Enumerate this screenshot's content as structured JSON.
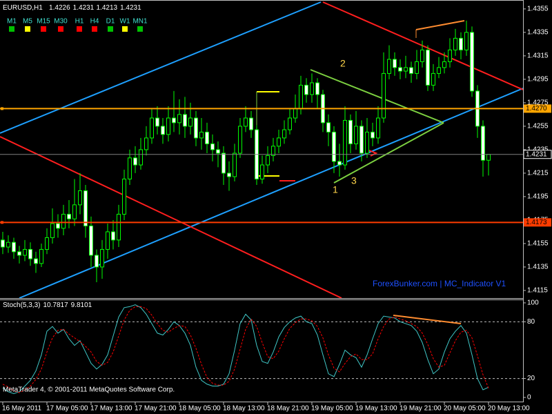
{
  "chart_data": [
    {
      "type": "candlestick",
      "title": "EURUSD,H1",
      "open": [
        1.4158,
        1.4152,
        1.4156,
        1.4148,
        1.4145,
        1.415,
        1.4142,
        1.4138,
        1.415,
        1.416,
        1.4172,
        1.4168,
        1.418,
        1.4176,
        1.4188,
        1.42,
        1.417,
        1.4145,
        1.4135,
        1.415,
        1.4165,
        1.4158,
        1.418,
        1.421,
        1.4228,
        1.4222,
        1.4235,
        1.4245,
        1.4262,
        1.4255,
        1.4248,
        1.4262,
        1.4258,
        1.4265,
        1.4255,
        1.4262,
        1.4245,
        1.425,
        1.424,
        1.4235,
        1.4232,
        1.4215,
        1.4212,
        1.4232,
        1.4255,
        1.4262,
        1.4252,
        1.421,
        1.4222,
        1.423,
        1.4238,
        1.4245,
        1.4252,
        1.4262,
        1.427,
        1.429,
        1.4282,
        1.4292,
        1.4282,
        1.4258,
        1.425,
        1.4225,
        1.4222,
        1.426,
        1.424,
        1.4255,
        1.4232,
        1.425,
        1.4245,
        1.4262,
        1.43,
        1.4312,
        1.4305,
        1.4302,
        1.4305,
        1.43,
        1.431,
        1.432,
        1.429,
        1.43,
        1.4305,
        1.431,
        1.432,
        1.433,
        1.432,
        1.4335,
        1.4285,
        1.4255,
        1.4226
      ],
      "high": [
        1.4165,
        1.4162,
        1.416,
        1.4153,
        1.4158,
        1.4156,
        1.4148,
        1.4155,
        1.4168,
        1.4185,
        1.418,
        1.4188,
        1.4192,
        1.421,
        1.4215,
        1.4205,
        1.4178,
        1.415,
        1.4158,
        1.4172,
        1.4175,
        1.4188,
        1.4218,
        1.4235,
        1.4238,
        1.4245,
        1.4255,
        1.427,
        1.4272,
        1.4262,
        1.4272,
        1.4285,
        1.4278,
        1.428,
        1.4275,
        1.4268,
        1.4262,
        1.4258,
        1.4248,
        1.4242,
        1.4238,
        1.4225,
        1.424,
        1.4262,
        1.4272,
        1.4268,
        1.4256,
        1.423,
        1.4238,
        1.4245,
        1.4252,
        1.426,
        1.427,
        1.4282,
        1.4298,
        1.4296,
        1.43,
        1.4296,
        1.4286,
        1.4265,
        1.4255,
        1.424,
        1.4272,
        1.4265,
        1.4268,
        1.426,
        1.4262,
        1.4258,
        1.4272,
        1.4318,
        1.4324,
        1.4318,
        1.4312,
        1.4315,
        1.431,
        1.432,
        1.4328,
        1.4324,
        1.4308,
        1.4314,
        1.4318,
        1.433,
        1.4338,
        1.4335,
        1.4345,
        1.434,
        1.429,
        1.426,
        1.4231
      ],
      "low": [
        1.4146,
        1.4147,
        1.4142,
        1.4138,
        1.414,
        1.4136,
        1.413,
        1.4135,
        1.4146,
        1.4155,
        1.416,
        1.4162,
        1.4168,
        1.417,
        1.418,
        1.416,
        1.4135,
        1.4122,
        1.4125,
        1.4142,
        1.415,
        1.4152,
        1.4175,
        1.4205,
        1.4215,
        1.4218,
        1.423,
        1.424,
        1.4248,
        1.424,
        1.4242,
        1.425,
        1.4248,
        1.4245,
        1.4248,
        1.4238,
        1.4235,
        1.4232,
        1.4225,
        1.422,
        1.4205,
        1.42,
        1.4208,
        1.4228,
        1.425,
        1.4245,
        1.4205,
        1.4206,
        1.4215,
        1.4225,
        1.4232,
        1.424,
        1.4248,
        1.4258,
        1.4265,
        1.4275,
        1.4275,
        1.427,
        1.425,
        1.4238,
        1.4215,
        1.4212,
        1.4218,
        1.4232,
        1.4235,
        1.4225,
        1.4228,
        1.4238,
        1.424,
        1.4258,
        1.4295,
        1.4298,
        1.4295,
        1.4296,
        1.4292,
        1.4295,
        1.4305,
        1.4285,
        1.4285,
        1.4296,
        1.43,
        1.4305,
        1.4315,
        1.4312,
        1.4315,
        1.428,
        1.4245,
        1.4212,
        1.4213
      ],
      "close": [
        1.4152,
        1.4156,
        1.4148,
        1.4145,
        1.415,
        1.4142,
        1.4138,
        1.415,
        1.416,
        1.4172,
        1.4168,
        1.418,
        1.4176,
        1.4188,
        1.42,
        1.417,
        1.4145,
        1.4135,
        1.415,
        1.4165,
        1.4158,
        1.418,
        1.421,
        1.4228,
        1.4222,
        1.4235,
        1.4245,
        1.4262,
        1.4255,
        1.4248,
        1.4262,
        1.4258,
        1.4265,
        1.4255,
        1.4262,
        1.4245,
        1.425,
        1.424,
        1.4235,
        1.4232,
        1.4215,
        1.4212,
        1.4232,
        1.4255,
        1.4262,
        1.4252,
        1.421,
        1.4222,
        1.423,
        1.4238,
        1.4245,
        1.4252,
        1.4262,
        1.427,
        1.429,
        1.4282,
        1.4292,
        1.4282,
        1.4258,
        1.425,
        1.4225,
        1.4222,
        1.426,
        1.424,
        1.4255,
        1.4232,
        1.425,
        1.4245,
        1.4262,
        1.43,
        1.4312,
        1.4305,
        1.4302,
        1.4305,
        1.43,
        1.431,
        1.432,
        1.429,
        1.43,
        1.4305,
        1.431,
        1.432,
        1.433,
        1.432,
        1.4335,
        1.4285,
        1.4255,
        1.4226,
        1.4231
      ],
      "colors": {
        "bull": "#000000",
        "bear": "#ffffff",
        "wick": "#00ff00"
      },
      "ylim": [
        1.41085,
        1.43626
      ],
      "yticks": [
        1.4355,
        1.4335,
        1.4315,
        1.4295,
        1.4275,
        1.4255,
        1.4235,
        1.4215,
        1.4195,
        1.4175,
        1.4155,
        1.4135,
        1.4115
      ],
      "current_price_color": "#808080",
      "levels": [
        {
          "value": 1.427,
          "label": "1.4270",
          "color": "#ffa500"
        },
        {
          "value": 1.4173,
          "color": "#ff3c00"
        }
      ],
      "timeframes": [
        {
          "label": "M1",
          "color": "#00c000"
        },
        {
          "label": "M5",
          "color": "#ffff00"
        },
        {
          "label": "M15",
          "color": "#ff0000"
        },
        {
          "label": "M30",
          "color": "#ff0000"
        },
        {
          "label": "H1",
          "color": "#ff0000"
        },
        {
          "label": "H4",
          "color": "#ff0000"
        },
        {
          "label": "D1",
          "color": "#00c000"
        },
        {
          "label": "W1",
          "color": "#ffff00"
        },
        {
          "label": "MN1",
          "color": "#00c000"
        }
      ],
      "annotations": [
        "1",
        "2",
        "3",
        "ForexBunker.com | MC_Indicator V1"
      ]
    },
    {
      "type": "line",
      "title": "Stoch(5,3,3)",
      "series": [
        {
          "name": "Main",
          "color": "#40c8c8",
          "values": [
            10,
            6,
            4,
            6,
            12,
            18,
            28,
            45,
            70,
            75,
            68,
            72,
            62,
            55,
            60,
            48,
            36,
            30,
            35,
            45,
            65,
            85,
            95,
            96,
            98,
            95,
            88,
            78,
            68,
            66,
            72,
            80,
            76,
            68,
            55,
            32,
            18,
            14,
            12,
            12,
            14,
            25,
            50,
            78,
            88,
            82,
            55,
            38,
            36,
            48,
            64,
            74,
            80,
            84,
            86,
            80,
            78,
            66,
            45,
            25,
            22,
            35,
            50,
            45,
            42,
            32,
            45,
            62,
            78,
            86,
            85,
            84,
            80,
            78,
            76,
            70,
            58,
            40,
            25,
            30,
            48,
            62,
            70,
            76,
            68,
            45,
            20,
            8,
            10.7817
          ]
        },
        {
          "name": "Signal",
          "color": "#ff0000",
          "dash": true,
          "values": [
            14,
            11,
            7,
            5,
            8,
            12,
            19,
            30,
            48,
            63,
            71,
            72,
            67,
            63,
            59,
            54,
            48,
            38,
            34,
            37,
            48,
            65,
            82,
            92,
            96,
            96,
            94,
            87,
            78,
            71,
            69,
            73,
            76,
            75,
            66,
            52,
            35,
            21,
            15,
            13,
            13,
            17,
            30,
            51,
            72,
            83,
            75,
            58,
            43,
            41,
            49,
            62,
            73,
            79,
            83,
            83,
            81,
            75,
            63,
            45,
            31,
            27,
            36,
            43,
            46,
            40,
            40,
            46,
            62,
            75,
            83,
            85,
            83,
            81,
            78,
            75,
            68,
            56,
            41,
            32,
            34,
            47,
            60,
            69,
            71,
            63,
            44,
            24,
            9.8101
          ]
        }
      ],
      "ylim": [
        -4.4,
        103.6
      ],
      "yticks": [
        0,
        20,
        80,
        100
      ],
      "levels": [
        20,
        80
      ],
      "xticks": [
        {
          "value": 0,
          "label": "16 May 2011"
        },
        {
          "value": 8,
          "label": "17 May 05:00"
        },
        {
          "value": 16,
          "label": "17 May 13:00"
        },
        {
          "value": 24,
          "label": "17 May 21:00"
        },
        {
          "value": 32,
          "label": "18 May 05:00"
        },
        {
          "value": 40,
          "label": "18 May 13:00"
        },
        {
          "value": 48,
          "label": "18 May 21:00"
        },
        {
          "value": 56,
          "label": "19 May 05:00"
        },
        {
          "value": 64,
          "label": "19 May 13:00"
        },
        {
          "value": 72,
          "label": "19 May 21:00"
        },
        {
          "value": 80,
          "label": "20 May 05:00"
        },
        {
          "value": 88,
          "label": "20 May 13:00"
        }
      ],
      "footer": "MetaTrader 4, © 2001-2011 MetaQuotes Software Corp."
    }
  ]
}
